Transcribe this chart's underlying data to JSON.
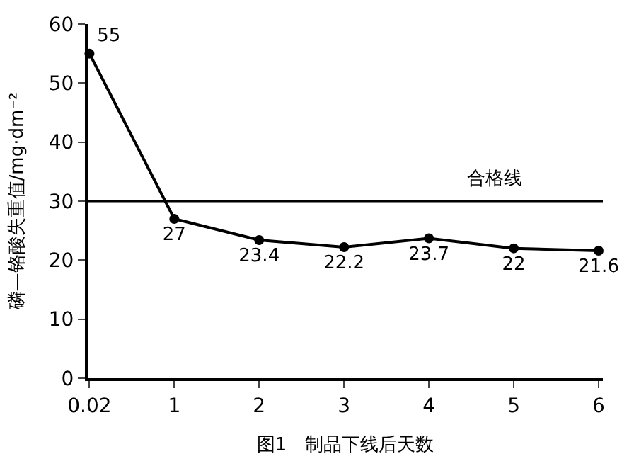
{
  "chart_data": {
    "type": "line",
    "xlabel": "图1　制品下线后天数",
    "ylabel": "磷—铬酸失重值/mg·dm⁻²",
    "categories": [
      "0.02",
      "1",
      "2",
      "3",
      "4",
      "5",
      "6"
    ],
    "series": [
      {
        "color": "#000000",
        "values": [
          55,
          27,
          23.4,
          22.2,
          23.7,
          22,
          21.6
        ]
      }
    ],
    "ylim": [
      0,
      60
    ],
    "yticks": [
      0,
      10,
      20,
      30,
      40,
      50,
      60
    ],
    "ref_lines": [
      {
        "axis": "y",
        "value": 30,
        "label": "合格线",
        "color": "#000000",
        "line_style": "solid"
      }
    ],
    "data_labels": true,
    "marker": "circle",
    "line_style": "solid",
    "legend": false
  }
}
